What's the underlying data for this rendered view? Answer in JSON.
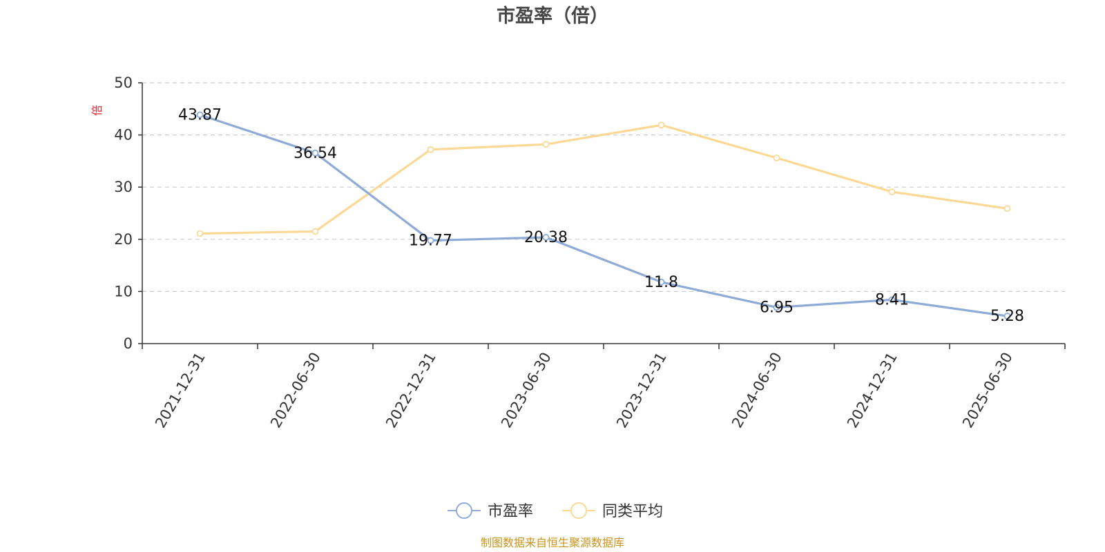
{
  "chart_data": {
    "type": "line",
    "title": "市盈率（倍）",
    "ylabel": "倍",
    "xlabel": "",
    "categories": [
      "2021-12-31",
      "2022-06-30",
      "2022-12-31",
      "2023-06-30",
      "2023-12-31",
      "2024-06-30",
      "2024-12-31",
      "2025-06-30"
    ],
    "ylim": [
      0,
      50
    ],
    "yticks": [
      0,
      10,
      20,
      30,
      40,
      50
    ],
    "grid": true,
    "legend_position": "bottom",
    "series": [
      {
        "name": "市盈率",
        "color": "#8eabd8",
        "values": [
          43.87,
          36.54,
          19.77,
          20.38,
          11.8,
          6.95,
          8.41,
          5.28
        ],
        "data_labels": [
          "43.87",
          "36.54",
          "19.77",
          "20.38",
          "11.8",
          "6.95",
          "8.41",
          "5.28"
        ]
      },
      {
        "name": "同类平均",
        "color": "#fbd994",
        "values": [
          21.1,
          21.5,
          37.2,
          38.2,
          41.9,
          35.6,
          29.1,
          25.9
        ]
      }
    ]
  },
  "source_note": "制图数据来自恒生聚源数据库"
}
